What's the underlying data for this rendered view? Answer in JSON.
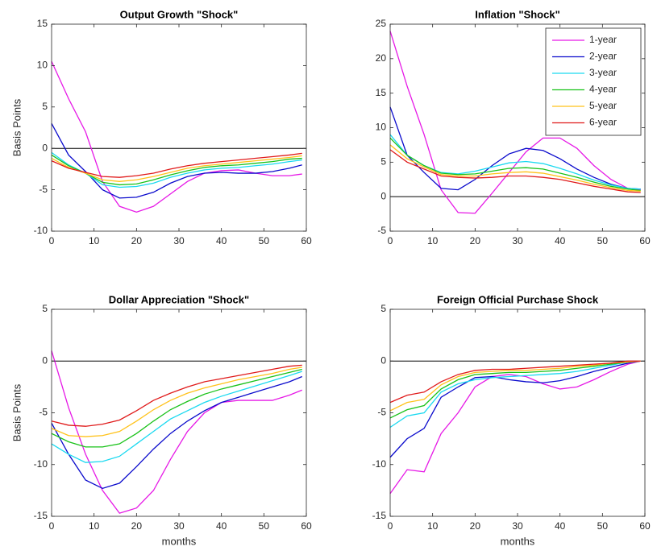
{
  "chart_data": [
    {
      "type": "line",
      "title": "Output Growth \"Shock\"",
      "ylabel": "Basis Points",
      "x": [
        0,
        4,
        8,
        12,
        16,
        20,
        24,
        28,
        32,
        36,
        40,
        44,
        48,
        52,
        56,
        59
      ],
      "xlim": [
        0,
        60
      ],
      "xticks": [
        0,
        10,
        20,
        30,
        40,
        50,
        60
      ],
      "ylim": [
        -10,
        15
      ],
      "yticks": [
        -10,
        -5,
        0,
        5,
        10,
        15
      ],
      "series": [
        {
          "color": "#e619e6",
          "values": [
            10.5,
            6,
            2,
            -4,
            -7,
            -7.7,
            -7,
            -5.5,
            -4,
            -3,
            -2.7,
            -2.6,
            -3,
            -3.3,
            -3.3,
            -3.1
          ]
        },
        {
          "color": "#0a0acc",
          "values": [
            3,
            -0.8,
            -2.8,
            -5,
            -6,
            -5.9,
            -5.3,
            -4.2,
            -3.4,
            -3,
            -2.9,
            -3,
            -3,
            -2.8,
            -2.4,
            -2
          ]
        },
        {
          "color": "#1ad9f0",
          "values": [
            -0.5,
            -2,
            -3,
            -4.4,
            -4.7,
            -4.6,
            -4.2,
            -3.5,
            -3,
            -2.6,
            -2.4,
            -2.3,
            -2.1,
            -1.9,
            -1.6,
            -1.4
          ]
        },
        {
          "color": "#19c219",
          "values": [
            -0.8,
            -2.1,
            -3,
            -4.1,
            -4.4,
            -4.3,
            -3.8,
            -3.2,
            -2.7,
            -2.3,
            -2.1,
            -2,
            -1.8,
            -1.6,
            -1.3,
            -1.2
          ]
        },
        {
          "color": "#ffc21a",
          "values": [
            -1.2,
            -2.3,
            -3,
            -3.8,
            -4,
            -3.8,
            -3.4,
            -2.9,
            -2.4,
            -2.1,
            -1.9,
            -1.7,
            -1.5,
            -1.3,
            -1.1,
            -0.9
          ]
        },
        {
          "color": "#e01a1a",
          "values": [
            -1.5,
            -2.4,
            -2.9,
            -3.4,
            -3.5,
            -3.3,
            -3,
            -2.5,
            -2.1,
            -1.8,
            -1.6,
            -1.4,
            -1.2,
            -1,
            -0.8,
            -0.6
          ]
        }
      ]
    },
    {
      "type": "line",
      "title": "Inflation \"Shock\"",
      "legend": "upper right",
      "x": [
        0,
        4,
        8,
        12,
        16,
        20,
        24,
        28,
        32,
        36,
        40,
        44,
        48,
        52,
        56,
        59
      ],
      "xlim": [
        0,
        60
      ],
      "xticks": [
        0,
        10,
        20,
        30,
        40,
        50,
        60
      ],
      "ylim": [
        -5,
        25
      ],
      "yticks": [
        -5,
        0,
        5,
        10,
        15,
        20,
        25
      ],
      "series": [
        {
          "name": "1-year",
          "color": "#e619e6",
          "values": [
            24,
            16,
            9,
            1,
            -2.3,
            -2.4,
            0.5,
            3.5,
            6.5,
            8.5,
            8.5,
            7,
            4.5,
            2.5,
            1.2,
            1
          ]
        },
        {
          "name": "2-year",
          "color": "#0a0acc",
          "values": [
            13,
            6,
            3.5,
            1.2,
            1,
            2.5,
            4.5,
            6.2,
            7,
            6.7,
            5.5,
            4,
            2.8,
            1.8,
            1.2,
            1.1
          ]
        },
        {
          "name": "3-year",
          "color": "#1ad9f0",
          "values": [
            9,
            6,
            4.5,
            3.5,
            3.3,
            3.7,
            4.3,
            4.9,
            5.1,
            4.8,
            4.1,
            3.3,
            2.4,
            1.7,
            1.2,
            1.1
          ]
        },
        {
          "name": "4-year",
          "color": "#19c219",
          "values": [
            8.5,
            6,
            4.5,
            3.4,
            3.2,
            3.3,
            3.7,
            4.1,
            4.2,
            4,
            3.4,
            2.8,
            2.1,
            1.5,
            1.1,
            0.9
          ]
        },
        {
          "name": "5-year",
          "color": "#ffc21a",
          "values": [
            7.5,
            5.5,
            4.3,
            3.2,
            3,
            3,
            3.3,
            3.5,
            3.6,
            3.4,
            2.9,
            2.4,
            1.8,
            1.3,
            0.9,
            0.8
          ]
        },
        {
          "name": "6-year",
          "color": "#e01a1a",
          "values": [
            6.8,
            5,
            4,
            3,
            2.8,
            2.7,
            2.8,
            3,
            3,
            2.8,
            2.5,
            2,
            1.5,
            1.1,
            0.7,
            0.6
          ]
        }
      ]
    },
    {
      "type": "line",
      "title": "Dollar Appreciation \"Shock\"",
      "ylabel": "Basis Points",
      "xlabel": "months",
      "x": [
        0,
        4,
        8,
        12,
        16,
        20,
        24,
        28,
        32,
        36,
        40,
        44,
        48,
        52,
        56,
        59
      ],
      "xlim": [
        0,
        60
      ],
      "xticks": [
        0,
        10,
        20,
        30,
        40,
        50,
        60
      ],
      "ylim": [
        -15,
        5
      ],
      "yticks": [
        -15,
        -10,
        -5,
        0,
        5
      ],
      "series": [
        {
          "color": "#e619e6",
          "values": [
            1,
            -4.5,
            -9,
            -12.5,
            -14.7,
            -14.2,
            -12.5,
            -9.5,
            -6.8,
            -5,
            -4,
            -3.8,
            -3.8,
            -3.8,
            -3.3,
            -2.8
          ]
        },
        {
          "color": "#0a0acc",
          "values": [
            -6,
            -9,
            -11.5,
            -12.3,
            -11.8,
            -10.2,
            -8.5,
            -7,
            -5.8,
            -4.8,
            -4,
            -3.5,
            -3,
            -2.5,
            -2,
            -1.5
          ]
        },
        {
          "color": "#1ad9f0",
          "values": [
            -8,
            -9,
            -9.8,
            -9.7,
            -9.2,
            -8,
            -6.8,
            -5.6,
            -4.8,
            -4,
            -3.4,
            -2.9,
            -2.4,
            -1.9,
            -1.4,
            -1
          ]
        },
        {
          "color": "#19c219",
          "values": [
            -7,
            -7.8,
            -8.3,
            -8.3,
            -8,
            -7,
            -5.8,
            -4.7,
            -3.9,
            -3.2,
            -2.7,
            -2.3,
            -1.9,
            -1.5,
            -1.1,
            -0.8
          ]
        },
        {
          "color": "#ffc21a",
          "values": [
            -6.5,
            -7.2,
            -7.3,
            -7.2,
            -6.8,
            -5.8,
            -4.7,
            -3.8,
            -3.1,
            -2.6,
            -2.2,
            -1.8,
            -1.5,
            -1.2,
            -0.8,
            -0.6
          ]
        },
        {
          "color": "#e01a1a",
          "values": [
            -5.8,
            -6.2,
            -6.3,
            -6.1,
            -5.7,
            -4.8,
            -3.8,
            -3.1,
            -2.5,
            -2,
            -1.7,
            -1.4,
            -1.1,
            -0.8,
            -0.5,
            -0.4
          ]
        }
      ]
    },
    {
      "type": "line",
      "title": "Foreign Official Purchase Shock",
      "xlabel": "months",
      "x": [
        0,
        4,
        8,
        12,
        16,
        20,
        24,
        28,
        32,
        36,
        40,
        44,
        48,
        52,
        56,
        59
      ],
      "xlim": [
        0,
        60
      ],
      "xticks": [
        0,
        10,
        20,
        30,
        40,
        50,
        60
      ],
      "ylim": [
        -15,
        5
      ],
      "yticks": [
        -15,
        -10,
        -5,
        0,
        5
      ],
      "series": [
        {
          "color": "#e619e6",
          "values": [
            -12.8,
            -10.5,
            -10.7,
            -7,
            -5,
            -2.5,
            -1.5,
            -1.3,
            -1.5,
            -2.2,
            -2.7,
            -2.5,
            -1.8,
            -1,
            -0.3,
            0
          ]
        },
        {
          "color": "#0a0acc",
          "values": [
            -9.3,
            -7.5,
            -6.5,
            -3.5,
            -2.5,
            -1.6,
            -1.5,
            -1.8,
            -2,
            -2.1,
            -1.9,
            -1.5,
            -1,
            -0.6,
            -0.2,
            0
          ]
        },
        {
          "color": "#1ad9f0",
          "values": [
            -6.4,
            -5.3,
            -5,
            -3,
            -2.2,
            -1.8,
            -1.6,
            -1.5,
            -1.4,
            -1.3,
            -1.2,
            -1,
            -0.7,
            -0.4,
            -0.1,
            0
          ]
        },
        {
          "color": "#19c219",
          "values": [
            -5.5,
            -4.7,
            -4.3,
            -2.7,
            -1.8,
            -1.3,
            -1.2,
            -1.1,
            -1.1,
            -1,
            -0.9,
            -0.7,
            -0.5,
            -0.3,
            -0.1,
            0
          ]
        },
        {
          "color": "#ffc21a",
          "values": [
            -4.8,
            -4,
            -3.7,
            -2.3,
            -1.5,
            -1.1,
            -1,
            -0.9,
            -0.9,
            -0.8,
            -0.7,
            -0.5,
            -0.4,
            -0.2,
            -0.1,
            0
          ]
        },
        {
          "color": "#e01a1a",
          "values": [
            -4,
            -3.3,
            -3,
            -2,
            -1.3,
            -0.9,
            -0.8,
            -0.8,
            -0.7,
            -0.6,
            -0.5,
            -0.4,
            -0.3,
            -0.2,
            0,
            0
          ]
        }
      ]
    }
  ]
}
